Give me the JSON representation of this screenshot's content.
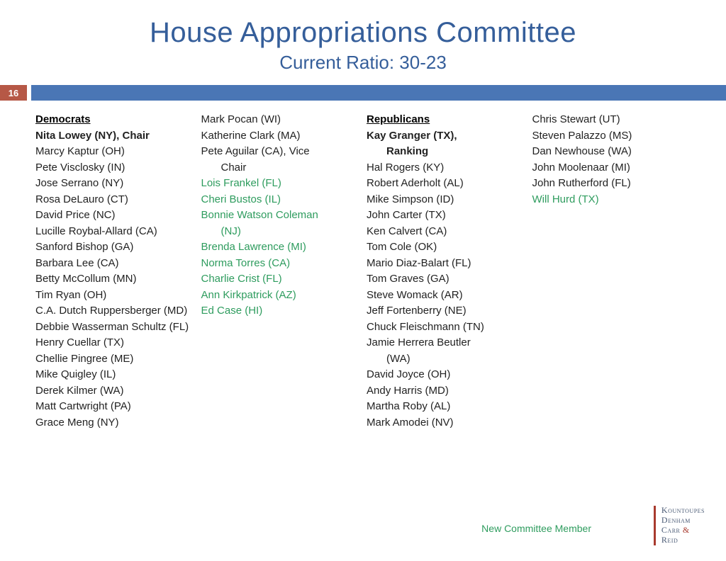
{
  "title": "House Appropriations Committee",
  "subtitle": "Current Ratio: 30-23",
  "page_number": "16",
  "colors": {
    "title": "#355e9a",
    "bar": "#4a76b5",
    "page_bg": "#b65846",
    "new_member": "#2e9c5e",
    "logo_accent": "#a83a2e",
    "logo_text": "#4a5a75"
  },
  "legend": "New Committee Member",
  "logo": {
    "line1": "Kountoupes",
    "line2": "Denham",
    "line3_a": "Carr",
    "line3_amp": "&",
    "line4": "Reid"
  },
  "columns": {
    "dem1": {
      "header": "Democrats",
      "items": [
        {
          "text": "Nita Lowey (NY), Chair",
          "bold": true
        },
        {
          "text": "Marcy Kaptur (OH)"
        },
        {
          "text": "Pete Visclosky (IN)"
        },
        {
          "text": "Jose Serrano (NY)"
        },
        {
          "text": "Rosa DeLauro (CT)"
        },
        {
          "text": "David Price (NC)"
        },
        {
          "text": "Lucille Roybal-Allard (CA)"
        },
        {
          "text": "Sanford Bishop (GA)"
        },
        {
          "text": "Barbara Lee (CA)"
        },
        {
          "text": "Betty McCollum (MN)"
        },
        {
          "text": "Tim Ryan (OH)"
        },
        {
          "text": "C.A. Dutch Ruppersberger (MD)"
        },
        {
          "text": "Debbie Wasserman Schultz (FL)"
        },
        {
          "text": "Henry Cuellar (TX)"
        },
        {
          "text": "Chellie Pingree (ME)"
        },
        {
          "text": "Mike Quigley (IL)"
        },
        {
          "text": "Derek Kilmer (WA)"
        },
        {
          "text": "Matt Cartwright (PA)"
        },
        {
          "text": "Grace Meng (NY)"
        }
      ]
    },
    "dem2": {
      "items": [
        {
          "text": "Mark Pocan (WI)"
        },
        {
          "text": "Katherine Clark (MA)"
        },
        {
          "text": "Pete Aguilar (CA), Vice"
        },
        {
          "text": "Chair",
          "indent": true
        },
        {
          "text": "Lois Frankel (FL)",
          "new": true
        },
        {
          "text": "Cheri Bustos (IL)",
          "new": true
        },
        {
          "text": "Bonnie Watson Coleman",
          "new": true
        },
        {
          "text": "(NJ)",
          "new": true,
          "indent": true
        },
        {
          "text": "Brenda Lawrence (MI)",
          "new": true
        },
        {
          "text": "Norma Torres (CA)",
          "new": true
        },
        {
          "text": "Charlie Crist (FL)",
          "new": true
        },
        {
          "text": "Ann Kirkpatrick (AZ)",
          "new": true
        },
        {
          "text": "Ed Case (HI)",
          "new": true
        }
      ]
    },
    "rep1": {
      "header": "Republicans",
      "items": [
        {
          "text": "Kay Granger (TX),",
          "bold": true
        },
        {
          "text": "Ranking",
          "bold": true,
          "indent": true
        },
        {
          "text": "Hal Rogers (KY)"
        },
        {
          "text": "Robert Aderholt (AL)"
        },
        {
          "text": "Mike Simpson (ID)"
        },
        {
          "text": "John Carter (TX)"
        },
        {
          "text": "Ken Calvert (CA)"
        },
        {
          "text": "Tom Cole (OK)"
        },
        {
          "text": "Mario Diaz-Balart (FL)"
        },
        {
          "text": "Tom Graves (GA)"
        },
        {
          "text": "Steve Womack (AR)"
        },
        {
          "text": "Jeff Fortenberry (NE)"
        },
        {
          "text": "Chuck Fleischmann (TN)"
        },
        {
          "text": "Jamie Herrera Beutler"
        },
        {
          "text": "(WA)",
          "indent": true
        },
        {
          "text": "David Joyce (OH)"
        },
        {
          "text": "Andy Harris (MD)"
        },
        {
          "text": "Martha Roby (AL)"
        },
        {
          "text": "Mark Amodei (NV)"
        }
      ]
    },
    "rep2": {
      "items": [
        {
          "text": "Chris Stewart (UT)"
        },
        {
          "text": "Steven Palazzo (MS)"
        },
        {
          "text": "Dan Newhouse (WA)"
        },
        {
          "text": "John Moolenaar (MI)"
        },
        {
          "text": "John Rutherford (FL)"
        },
        {
          "text": "Will Hurd (TX)",
          "new": true
        }
      ]
    }
  }
}
